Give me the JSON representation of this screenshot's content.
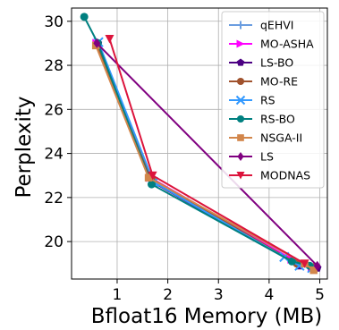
{
  "chart_data": {
    "type": "line",
    "title": "",
    "xlabel": "Bfloat16 Memory (MB)",
    "ylabel": "Perplexity",
    "xlim": [
      0.1,
      5.15
    ],
    "ylim": [
      18.3,
      30.6
    ],
    "xticks": [
      1,
      2,
      3,
      4,
      5
    ],
    "yticks": [
      20,
      22,
      24,
      26,
      28,
      30
    ],
    "grid": true,
    "legend_position": "top-right",
    "series": [
      {
        "name": "qEHVI",
        "color": "#6a9de0",
        "marker": "plus",
        "x": [
          0.62,
          1.7,
          4.5,
          4.9
        ],
        "y": [
          28.9,
          22.8,
          19.1,
          18.8
        ]
      },
      {
        "name": "MO-ASHA",
        "color": "#ff00ff",
        "marker": "triangle-right",
        "x": [
          0.6,
          1.66,
          4.45,
          4.85
        ],
        "y": [
          29.0,
          22.9,
          19.2,
          18.85
        ]
      },
      {
        "name": "LS-BO",
        "color": "#4b0082",
        "marker": "pentagon",
        "x": [
          0.62,
          1.7,
          4.6,
          4.95
        ],
        "y": [
          29.0,
          22.7,
          18.9,
          18.8
        ]
      },
      {
        "name": "MO-RE",
        "color": "#a0522d",
        "marker": "circle",
        "x": [
          0.6,
          1.68,
          4.55,
          4.9
        ],
        "y": [
          28.95,
          22.85,
          19.0,
          18.85
        ]
      },
      {
        "name": "RS",
        "color": "#3399ff",
        "marker": "x",
        "x": [
          0.63,
          1.72,
          4.3,
          4.6,
          4.85
        ],
        "y": [
          29.05,
          22.7,
          19.3,
          18.9,
          18.8
        ]
      },
      {
        "name": "RS-BO",
        "color": "#008080",
        "marker": "circle",
        "x": [
          0.35,
          0.62,
          1.68,
          4.45,
          4.8
        ],
        "y": [
          30.2,
          29.0,
          22.6,
          19.1,
          18.9
        ]
      },
      {
        "name": "NSGA-II",
        "color": "#d2864b",
        "marker": "square",
        "x": [
          0.58,
          1.62,
          4.7,
          4.88
        ],
        "y": [
          28.9,
          22.9,
          19.0,
          18.7
        ]
      },
      {
        "name": "LS",
        "color": "#800080",
        "marker": "diamond",
        "x": [
          0.6,
          4.95
        ],
        "y": [
          29.0,
          18.9
        ]
      },
      {
        "name": "MODNAS",
        "color": "#dc143c",
        "marker": "triangle-down",
        "x": [
          0.85,
          1.7,
          4.7
        ],
        "y": [
          29.2,
          23.0,
          19.0
        ]
      }
    ]
  }
}
